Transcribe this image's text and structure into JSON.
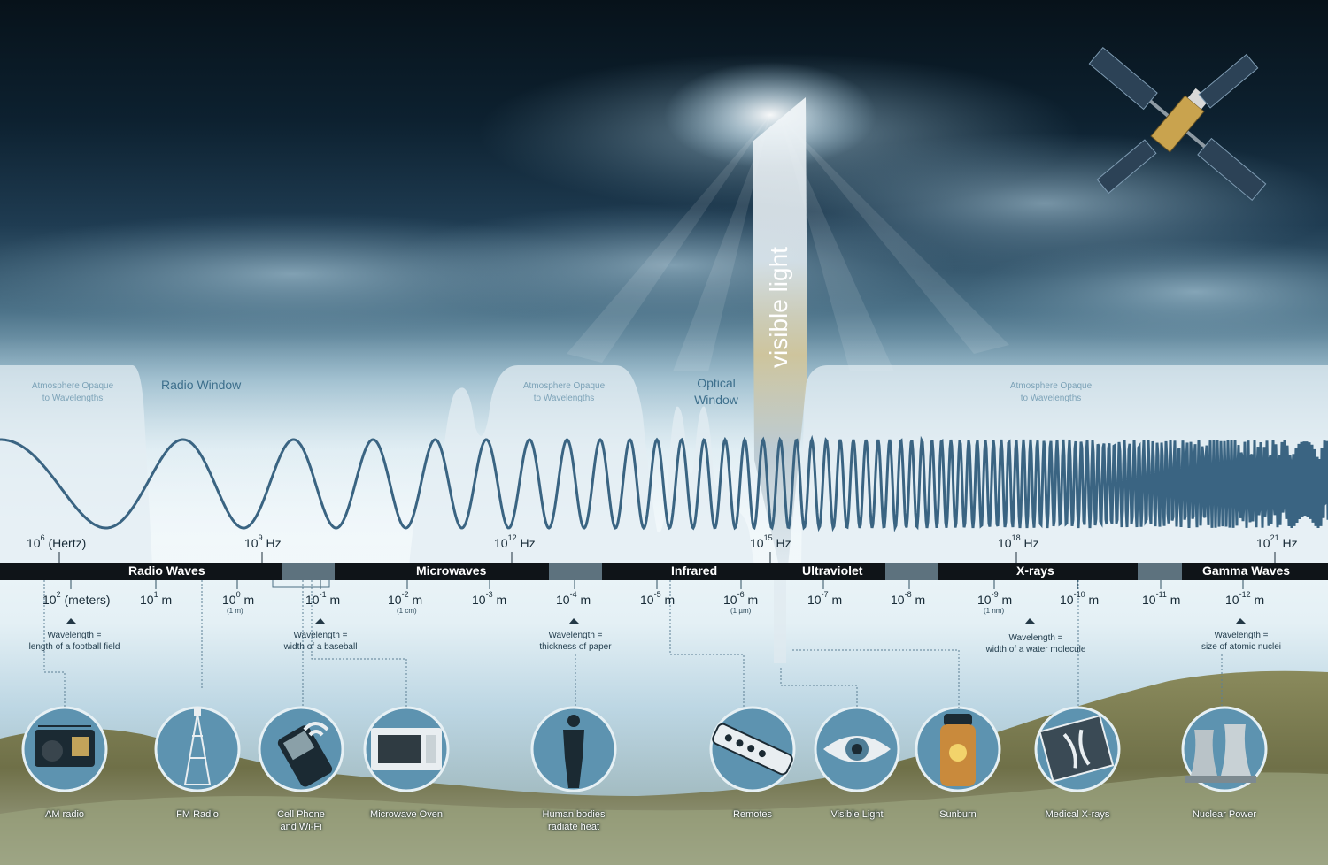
{
  "figure": {
    "visible_light_title": "visible light",
    "windows": {
      "radio": "Radio Window",
      "optical": [
        "Optical",
        "Window"
      ]
    },
    "opaque_labels": [
      [
        "Atmosphere Opaque",
        "to Wavelengths"
      ],
      [
        "Atmosphere Opaque",
        "to Wavelengths"
      ],
      [
        "Atmosphere Opaque",
        "to Wavelengths"
      ]
    ],
    "frequency_labels": [
      {
        "base": "10",
        "exp": "6",
        "unit": "(Hertz)"
      },
      {
        "base": "10",
        "exp": "9",
        "unit": "Hz"
      },
      {
        "base": "10",
        "exp": "12",
        "unit": "Hz"
      },
      {
        "base": "10",
        "exp": "15",
        "unit": "Hz"
      },
      {
        "base": "10",
        "exp": "18",
        "unit": "Hz"
      },
      {
        "base": "10",
        "exp": "21",
        "unit": "Hz"
      }
    ],
    "bands": [
      "Radio Waves",
      "Microwaves",
      "Infrared",
      "Ultraviolet",
      "X-rays",
      "Gamma Waves"
    ],
    "wavelength_labels": [
      {
        "base": "10",
        "exp": "2",
        "unit": "(meters)",
        "sub": ""
      },
      {
        "base": "10",
        "exp": "1",
        "unit": "m",
        "sub": ""
      },
      {
        "base": "10",
        "exp": "0",
        "unit": "m",
        "sub": "(1 m)"
      },
      {
        "base": "10",
        "exp": "-1",
        "unit": "m",
        "sub": ""
      },
      {
        "base": "10",
        "exp": "-2",
        "unit": "m",
        "sub": "(1 cm)"
      },
      {
        "base": "10",
        "exp": "-3",
        "unit": "m",
        "sub": ""
      },
      {
        "base": "10",
        "exp": "-4",
        "unit": "m",
        "sub": ""
      },
      {
        "base": "10",
        "exp": "-5",
        "unit": "m",
        "sub": ""
      },
      {
        "base": "10",
        "exp": "-6",
        "unit": "m",
        "sub": "(1 µm)"
      },
      {
        "base": "10",
        "exp": "-7",
        "unit": "m",
        "sub": ""
      },
      {
        "base": "10",
        "exp": "-8",
        "unit": "m",
        "sub": ""
      },
      {
        "base": "10",
        "exp": "-9",
        "unit": "m",
        "sub": "(1 nm)"
      },
      {
        "base": "10",
        "exp": "-10",
        "unit": "m",
        "sub": ""
      },
      {
        "base": "10",
        "exp": "-11",
        "unit": "m",
        "sub": ""
      },
      {
        "base": "10",
        "exp": "-12",
        "unit": "m",
        "sub": ""
      }
    ],
    "comparisons": [
      [
        "Wavelength =",
        "length of a football field"
      ],
      [
        "Wavelength =",
        "width of a baseball"
      ],
      [
        "Wavelength =",
        "thickness of paper"
      ],
      [
        "Wavelength =",
        "width of a water molecule"
      ],
      [
        "Wavelength =",
        "size of atomic nuclei"
      ]
    ],
    "applications": [
      {
        "lines": [
          "AM radio"
        ],
        "icon": "radio-icon"
      },
      {
        "lines": [
          "FM Radio"
        ],
        "icon": "radio-tower-icon"
      },
      {
        "lines": [
          "Cell Phone",
          "and Wi-Fi"
        ],
        "icon": "cell-phone-icon"
      },
      {
        "lines": [
          "Microwave Oven"
        ],
        "icon": "microwave-oven-icon"
      },
      {
        "lines": [
          "Human bodies",
          "radiate heat"
        ],
        "icon": "person-icon"
      },
      {
        "lines": [
          "Remotes"
        ],
        "icon": "remote-control-icon"
      },
      {
        "lines": [
          "Visible Light"
        ],
        "icon": "eye-icon"
      },
      {
        "lines": [
          "Sunburn"
        ],
        "icon": "sunscreen-bottle-icon"
      },
      {
        "lines": [
          "Medical X-rays"
        ],
        "icon": "xray-film-icon"
      },
      {
        "lines": [
          "Nuclear Power"
        ],
        "icon": "cooling-tower-icon"
      }
    ],
    "colors": {
      "band_bar": "#0f1418",
      "wave": "#3a6482",
      "opaque_fill": "#e3edf2",
      "icon_fill": "#5d93b0",
      "icon_ring": "#e6f0f4",
      "satellite_panel": "#2c4256",
      "satellite_body": "#c9a34e"
    }
  }
}
